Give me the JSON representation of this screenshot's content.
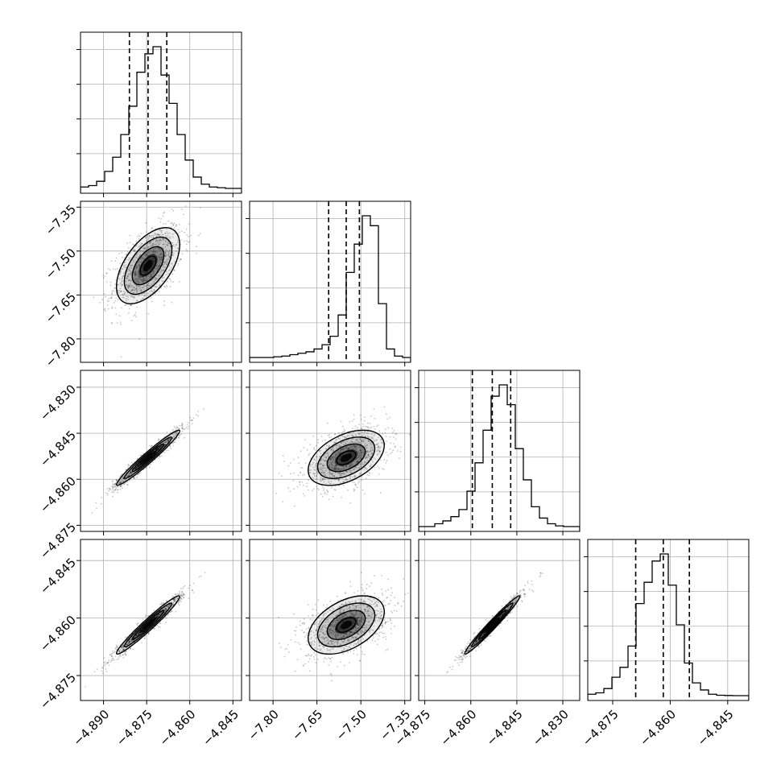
{
  "chart_data": {
    "type": "scatter",
    "title": "",
    "kind": "corner-plot",
    "n_params": 4,
    "grid": true,
    "colors": {
      "line": "#000000",
      "grid": "#b0b0b0",
      "density": "#000000"
    },
    "params": [
      {
        "range": [
          -4.898,
          -4.842
        ],
        "ticks": [
          -4.89,
          -4.875,
          -4.86,
          -4.845
        ],
        "tick_labels": [
          "−4.890",
          "−4.875",
          "−4.860",
          "−4.845"
        ],
        "median": -4.8745,
        "sigma": 0.0055,
        "q16": -4.881,
        "q84": -4.868
      },
      {
        "range": [
          -7.88,
          -7.33
        ],
        "ticks": [
          -7.8,
          -7.65,
          -7.5,
          -7.35
        ],
        "tick_labels": [
          "−7.80",
          "−7.65",
          "−7.50",
          "−7.35"
        ],
        "median": -7.55,
        "sigma": 0.065,
        "q16": -7.61,
        "q84": -7.505
      },
      {
        "range": [
          -4.877,
          -4.8245
        ],
        "ticks": [
          -4.875,
          -4.86,
          -4.845,
          -4.83
        ],
        "tick_labels": [
          "−4.875",
          "−4.860",
          "−4.845",
          "−4.830"
        ],
        "median": -4.853,
        "sigma": 0.0045,
        "q16": -4.8595,
        "q84": -4.847
      },
      {
        "range": [
          -4.8815,
          -4.8395
        ],
        "ticks": [
          -4.875,
          -4.86,
          -4.845
        ],
        "tick_labels": [
          "−4.875",
          "−4.860",
          "−4.845"
        ],
        "median": -4.8618,
        "sigma": 0.0038,
        "q16": -4.869,
        "q84": -4.855
      }
    ],
    "histograms": [
      [
        0.01,
        0.02,
        0.05,
        0.12,
        0.22,
        0.38,
        0.58,
        0.82,
        0.95,
        1.0,
        0.8,
        0.6,
        0.38,
        0.2,
        0.08,
        0.03,
        0.01,
        0.005,
        0,
        0
      ],
      [
        0,
        0,
        0,
        0.005,
        0.01,
        0.02,
        0.03,
        0.04,
        0.06,
        0.09,
        0.15,
        0.3,
        0.6,
        0.8,
        1.0,
        0.93,
        0.38,
        0.06,
        0.01,
        0
      ],
      [
        0,
        0,
        0.02,
        0.04,
        0.07,
        0.12,
        0.25,
        0.45,
        0.68,
        0.92,
        1.0,
        0.86,
        0.55,
        0.33,
        0.14,
        0.06,
        0.02,
        0.005,
        0,
        0
      ],
      [
        0.01,
        0.02,
        0.05,
        0.13,
        0.2,
        0.35,
        0.65,
        0.8,
        0.95,
        1.0,
        0.78,
        0.5,
        0.23,
        0.09,
        0.04,
        0.01,
        0.003,
        0.001,
        0,
        0
      ]
    ],
    "correlations": [
      [
        1,
        0.55,
        0.97,
        0.97
      ],
      [
        0.55,
        1,
        0.45,
        0.45
      ],
      [
        0.97,
        0.45,
        1,
        0.98
      ],
      [
        0.97,
        0.45,
        0.98,
        1
      ]
    ]
  }
}
